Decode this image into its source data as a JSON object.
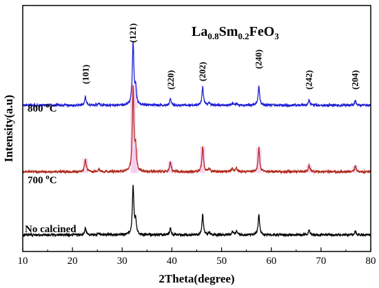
{
  "chart_data": {
    "type": "line",
    "title_parts": [
      {
        "text": "La",
        "sub": false
      },
      {
        "text": "0.8",
        "sub": true
      },
      {
        "text": "Sm",
        "sub": false
      },
      {
        "text": "0.2",
        "sub": true
      },
      {
        "text": "FeO",
        "sub": false
      },
      {
        "text": "3",
        "sub": true
      }
    ],
    "xlabel": "2Theta(degree)",
    "ylabel": "Intensity(a.u)",
    "xlim": [
      10,
      80
    ],
    "xticks": [
      10,
      20,
      30,
      40,
      50,
      60,
      70,
      80
    ],
    "grid": false,
    "y_ticks_shown": false,
    "peak_labels": [
      {
        "text": "(101)",
        "x": 22.7
      },
      {
        "text": "(121)",
        "x": 32.2
      },
      {
        "text": "(220)",
        "x": 39.8
      },
      {
        "text": "(202)",
        "x": 46.2
      },
      {
        "text": "(240)",
        "x": 57.5
      },
      {
        "text": "(242)",
        "x": 67.6
      },
      {
        "text": "(204)",
        "x": 76.9
      }
    ],
    "series": [
      {
        "name": "800 °C",
        "label_parts": [
          {
            "text": "800 ",
            "sup": false
          },
          {
            "text": "o",
            "sup": true
          },
          {
            "text": "C",
            "sup": false
          }
        ],
        "color": "#1f1fd6",
        "baseline": 1.95,
        "peaks": [
          [
            22.6,
            0.12
          ],
          [
            25.3,
            0.03
          ],
          [
            32.2,
            0.95
          ],
          [
            32.7,
            0.25
          ],
          [
            39.7,
            0.1
          ],
          [
            46.2,
            0.28
          ],
          [
            47.5,
            0.04
          ],
          [
            52.2,
            0.03
          ],
          [
            53.0,
            0.03
          ],
          [
            57.5,
            0.28
          ],
          [
            67.6,
            0.08
          ],
          [
            76.9,
            0.07
          ]
        ]
      },
      {
        "name": "700 °C",
        "label_parts": [
          {
            "text": "700 ",
            "sup": false
          },
          {
            "text": "o",
            "sup": true
          },
          {
            "text": "C",
            "sup": false
          }
        ],
        "color": "#b22a1e",
        "baseline": 0.95,
        "peaks": [
          [
            22.6,
            0.2
          ],
          [
            25.3,
            0.04
          ],
          [
            32.2,
            1.25
          ],
          [
            32.7,
            0.35
          ],
          [
            39.7,
            0.15
          ],
          [
            46.2,
            0.38
          ],
          [
            47.5,
            0.05
          ],
          [
            52.2,
            0.05
          ],
          [
            53.0,
            0.05
          ],
          [
            57.5,
            0.36
          ],
          [
            67.6,
            0.1
          ],
          [
            76.9,
            0.09
          ]
        ]
      },
      {
        "name": "No calcined",
        "label_parts": [
          {
            "text": "No calcined",
            "sup": false
          }
        ],
        "color": "#000000",
        "baseline": 0.0,
        "peaks": [
          [
            22.6,
            0.1
          ],
          [
            25.3,
            0.03
          ],
          [
            32.2,
            0.72
          ],
          [
            32.7,
            0.2
          ],
          [
            39.7,
            0.1
          ],
          [
            46.2,
            0.3
          ],
          [
            47.5,
            0.04
          ],
          [
            52.2,
            0.05
          ],
          [
            53.0,
            0.05
          ],
          [
            57.5,
            0.3
          ],
          [
            67.6,
            0.07
          ],
          [
            76.9,
            0.06
          ]
        ]
      }
    ]
  }
}
